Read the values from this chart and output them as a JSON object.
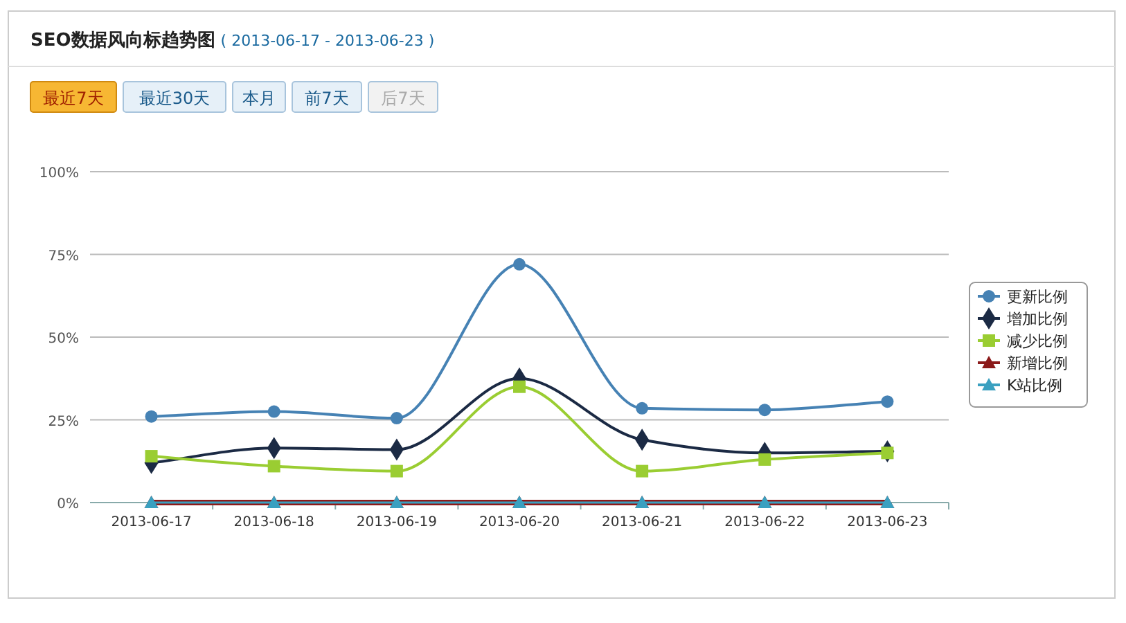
{
  "chart_data": {
    "type": "line",
    "title": "SEO数据风向标趋势图",
    "subtitle": "( 2013-06-17 - 2013-06-23 )",
    "annotations": [
      "最近7天",
      "最近30天",
      "本月",
      "前7天",
      "后7天"
    ],
    "categories": [
      "2013-06-17",
      "2013-06-18",
      "2013-06-19",
      "2013-06-20",
      "2013-06-21",
      "2013-06-22",
      "2013-06-23"
    ],
    "ylim": [
      0,
      100
    ],
    "yticks": [
      {
        "value": 0,
        "label": "0%"
      },
      {
        "value": 25,
        "label": "25%"
      },
      {
        "value": 50,
        "label": "50%"
      },
      {
        "value": 75,
        "label": "75%"
      },
      {
        "value": 100,
        "label": "100%"
      }
    ],
    "grid": "y",
    "legend": "right",
    "series": [
      {
        "name": "更新比例",
        "color": "#4682b4",
        "marker": "circle",
        "values": [
          26,
          27.5,
          25.5,
          72,
          28.5,
          28,
          30.5
        ]
      },
      {
        "name": "增加比例",
        "color": "#1b2a44",
        "marker": "diamond",
        "values": [
          12,
          16.5,
          16,
          37.5,
          19,
          15,
          15.5
        ]
      },
      {
        "name": "减少比例",
        "color": "#9acd32",
        "marker": "square",
        "values": [
          14,
          11,
          9.5,
          35,
          9.5,
          13,
          15
        ]
      },
      {
        "name": "新增比例",
        "color": "#8b1a1a",
        "marker": "triangle",
        "values": [
          0,
          0,
          0,
          0,
          0,
          0,
          0
        ]
      },
      {
        "name": "K站比例",
        "color": "#3aa0c0",
        "marker": "triangle",
        "values": [
          0,
          0,
          0,
          0,
          0,
          0,
          0
        ]
      }
    ]
  }
}
